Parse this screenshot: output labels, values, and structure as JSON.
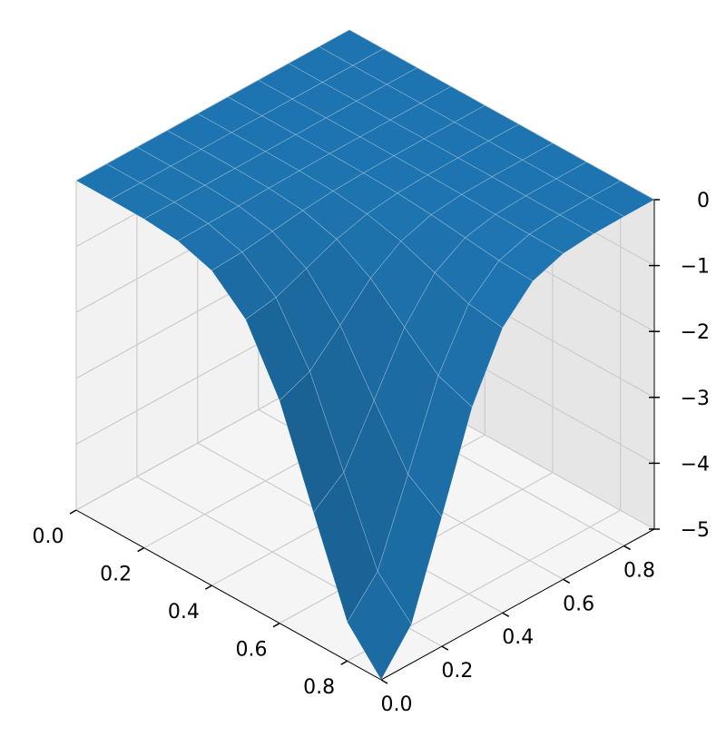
{
  "chart_data": {
    "type": "surface",
    "title": "",
    "xlabel": "",
    "ylabel": "",
    "zlabel": "",
    "grid": true,
    "colors": {
      "surface": "#1f77b4",
      "pane_left": "#f2f2f2",
      "pane_right": "#e6e6e6",
      "pane_floor": "#f5f5f5",
      "grid_line": "#cccccc"
    },
    "x_ticks": [
      "0.0",
      "0.2",
      "0.4",
      "0.6",
      "0.8"
    ],
    "y_ticks": [
      "0.0",
      "0.2",
      "0.4",
      "0.6",
      "0.8"
    ],
    "z_ticks": [
      "0",
      "−1",
      "−2",
      "−3",
      "−4",
      "−5"
    ],
    "xlim": [
      0,
      0.9
    ],
    "ylim": [
      0,
      0.9
    ],
    "zlim": [
      -5,
      0
    ],
    "x": [
      0.0,
      0.1,
      0.2,
      0.3,
      0.4,
      0.5,
      0.6,
      0.7,
      0.8,
      0.9
    ],
    "y": [
      0.0,
      0.1,
      0.2,
      0.3,
      0.4,
      0.5,
      0.6,
      0.7,
      0.8,
      0.9
    ],
    "z_formula": "z = -5 * exp(-((x-0.9)^2 + y^2) / (2*0.2^2))"
  }
}
